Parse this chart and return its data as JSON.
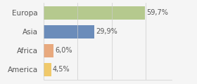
{
  "categories": [
    "America",
    "Africa",
    "Asia",
    "Europa"
  ],
  "values": [
    4.5,
    6.0,
    29.9,
    59.7
  ],
  "labels": [
    "4,5%",
    "6,0%",
    "29,9%",
    "59,7%"
  ],
  "bar_colors": [
    "#f0c96a",
    "#e8a97e",
    "#6b8cba",
    "#b5c98e"
  ],
  "background_color": "#f5f5f5",
  "xlim": [
    0,
    75
  ],
  "bar_height": 0.72,
  "label_fontsize": 7,
  "tick_fontsize": 7.5
}
